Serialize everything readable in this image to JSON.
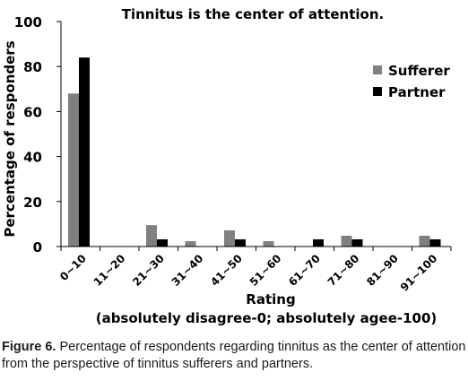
{
  "chart_data": {
    "type": "bar",
    "title": "Tinnitus is the center of attention.",
    "ylabel": "Percentage of responders",
    "xlabel": "Rating",
    "xlabel_note": "(absolutely disagree-0; absolutely agee-100)",
    "categories": [
      "0~10",
      "11~20",
      "21~30",
      "31~40",
      "41~50",
      "51~60",
      "61~70",
      "71~80",
      "81~90",
      "91~100"
    ],
    "series": [
      {
        "name": "Sufferer",
        "color": "#808080",
        "values": [
          68,
          0,
          9.5,
          2.4,
          7.2,
          2.4,
          0,
          4.8,
          0,
          4.8
        ]
      },
      {
        "name": "Partner",
        "color": "#000000",
        "values": [
          84,
          0,
          3.2,
          0,
          3.2,
          0,
          3.2,
          3.2,
          0,
          3.2
        ]
      }
    ],
    "ylim": [
      0,
      100
    ],
    "yticks": [
      0,
      20,
      40,
      60,
      80,
      100
    ],
    "grid": false,
    "legend_position": "top-right"
  },
  "caption": {
    "figure_label": "Figure 6.",
    "text": " Percentage of respondents regarding tinnitus as the center of attention from the perspective of tinnitus sufferers and partners."
  }
}
